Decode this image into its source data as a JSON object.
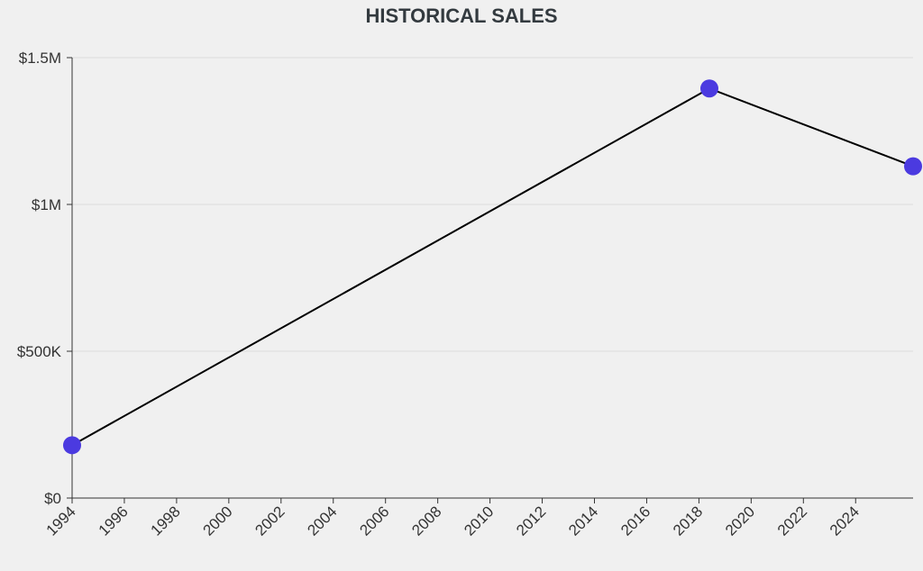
{
  "chart_data": {
    "type": "line",
    "title": "HISTORICAL SALES",
    "xlabel": "",
    "ylabel": "",
    "x": [
      1994,
      2018.4,
      2026.2
    ],
    "series": [
      {
        "values": [
          180000,
          1395000,
          1130000
        ]
      }
    ],
    "xlim": [
      1994,
      2026.2
    ],
    "ylim": [
      0,
      1500000
    ],
    "x_ticks": [
      1994,
      1996,
      1998,
      2000,
      2002,
      2004,
      2006,
      2008,
      2010,
      2012,
      2014,
      2016,
      2018,
      2020,
      2022,
      2024
    ],
    "x_tick_labels": [
      "1994",
      "1996",
      "1998",
      "2000",
      "2002",
      "2004",
      "2006",
      "2008",
      "2010",
      "2012",
      "2014",
      "2016",
      "2018",
      "2020",
      "2022",
      "2024"
    ],
    "y_ticks": [
      0,
      500000,
      1000000,
      1500000
    ],
    "y_tick_labels": [
      "$0",
      "$500K",
      "$1M",
      "$1.5M"
    ],
    "grid": true,
    "legend": "none",
    "colors": {
      "line": "#000000",
      "marker": "#4b3ae0",
      "grid": "#dddddd",
      "axis": "#333333"
    }
  }
}
